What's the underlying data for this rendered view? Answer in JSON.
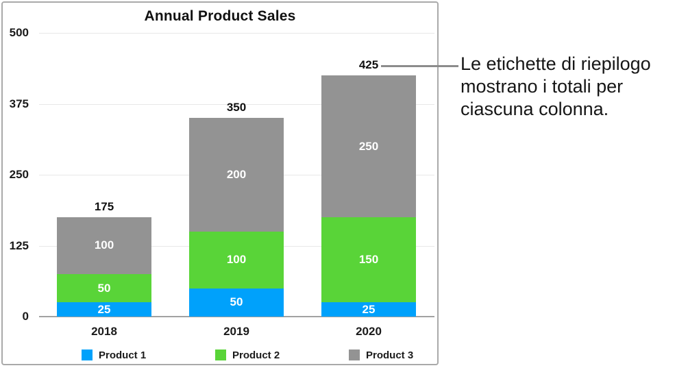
{
  "chart_data": {
    "type": "bar",
    "stacked": true,
    "title": "Annual Product Sales",
    "categories": [
      "2018",
      "2019",
      "2020"
    ],
    "series": [
      {
        "name": "Product 1",
        "color": "#00A1FB",
        "values": [
          25,
          50,
          25
        ]
      },
      {
        "name": "Product 2",
        "color": "#59D438",
        "values": [
          50,
          100,
          150
        ]
      },
      {
        "name": "Product 3",
        "color": "#939393",
        "values": [
          100,
          200,
          250
        ]
      }
    ],
    "totals": [
      "175",
      "350",
      "425"
    ],
    "y_ticks": [
      0,
      125,
      250,
      375,
      500
    ],
    "ylim": [
      0,
      500
    ],
    "grid": true,
    "legend_position": "bottom",
    "segment_label_color": "#ffffff",
    "total_label_color": "#111111"
  },
  "callout": {
    "text": "Le etichette di riepilogo mostrano i totali per ciascuna colonna.",
    "points_to_total": "425"
  }
}
